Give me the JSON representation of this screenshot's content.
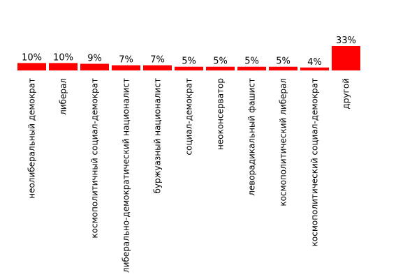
{
  "chart_data": {
    "type": "bar",
    "categories": [
      "неолиберальный демократ",
      "либерал",
      "космополитичный социал-демократ",
      "либерально-демократический националист",
      "буржуазный националист",
      "социал-демократ",
      "неоконсерватор",
      "леворадикальный фашист",
      "космополитический либерал",
      "космополитический социал-демократ",
      "другой"
    ],
    "values": [
      10,
      10,
      9,
      7,
      7,
      5,
      5,
      5,
      5,
      4,
      33
    ],
    "value_labels": [
      "10%",
      "10%",
      "9%",
      "7%",
      "7%",
      "5%",
      "5%",
      "5%",
      "5%",
      "4%",
      "33%"
    ],
    "ylim": [
      0,
      33
    ],
    "grid": false,
    "colors": {
      "bar": "#ff0000",
      "text": "#000000",
      "background": "#ffffff"
    }
  }
}
